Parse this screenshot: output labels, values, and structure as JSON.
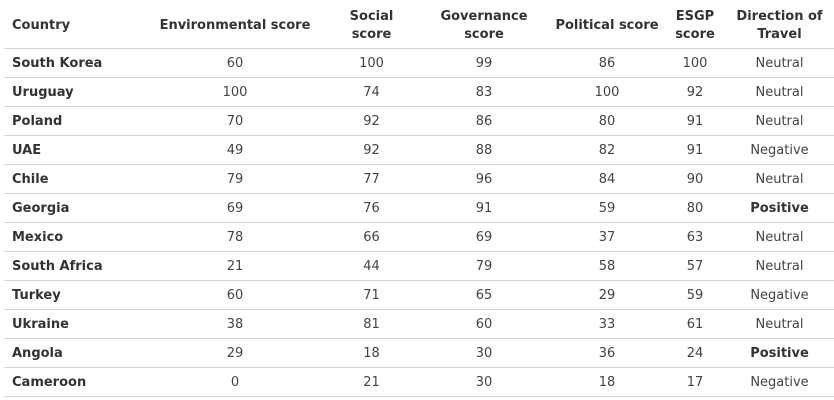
{
  "table": {
    "headers": [
      "Country",
      "Environmental score",
      "Social score",
      "Governance score",
      "Political score",
      "ESGP score",
      "Direction of Travel"
    ],
    "rows": [
      [
        "South Korea",
        "60",
        "100",
        "99",
        "86",
        "100",
        "Neutral"
      ],
      [
        "Uruguay",
        "100",
        "74",
        "83",
        "100",
        "92",
        "Neutral"
      ],
      [
        "Poland",
        "70",
        "92",
        "86",
        "80",
        "91",
        "Neutral"
      ],
      [
        "UAE",
        "49",
        "92",
        "88",
        "82",
        "91",
        "Negative"
      ],
      [
        "Chile",
        "79",
        "77",
        "96",
        "84",
        "90",
        "Neutral"
      ],
      [
        "Georgia",
        "69",
        "76",
        "91",
        "59",
        "80",
        "Positive"
      ],
      [
        "Mexico",
        "78",
        "66",
        "69",
        "37",
        "63",
        "Neutral"
      ],
      [
        "South Africa",
        "21",
        "44",
        "79",
        "58",
        "57",
        "Neutral"
      ],
      [
        "Turkey",
        "60",
        "71",
        "65",
        "29",
        "59",
        "Negative"
      ],
      [
        "Ukraine",
        "38",
        "81",
        "60",
        "33",
        "61",
        "Neutral"
      ],
      [
        "Angola",
        "29",
        "18",
        "30",
        "36",
        "24",
        "Positive"
      ],
      [
        "Cameroon",
        "0",
        "21",
        "30",
        "18",
        "17",
        "Negative"
      ]
    ]
  }
}
